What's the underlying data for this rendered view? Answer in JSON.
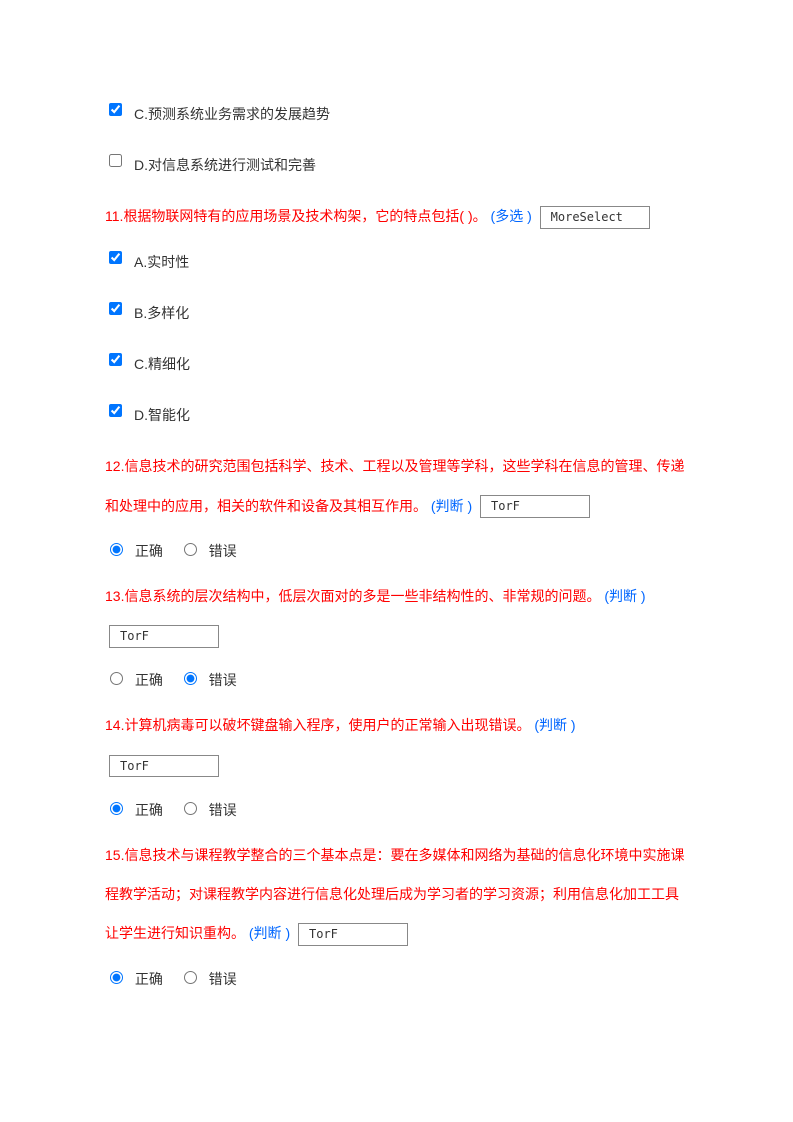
{
  "q10": {
    "options": [
      {
        "checked": true,
        "label": "C.预测系统业务需求的发展趋势"
      },
      {
        "checked": false,
        "label": "D.对信息系统进行测试和完善"
      }
    ]
  },
  "q11": {
    "number": "11.",
    "text": "根据物联网特有的应用场景及技术构架，它的特点包括( )。",
    "tag": "(多选 )",
    "type_box": "MoreSelect",
    "options": [
      {
        "checked": true,
        "label": "A.实时性"
      },
      {
        "checked": true,
        "label": "B.多样化"
      },
      {
        "checked": true,
        "label": "C.精细化"
      },
      {
        "checked": true,
        "label": "D.智能化"
      }
    ]
  },
  "q12": {
    "number": "12.",
    "text": "信息技术的研究范围包括科学、技术、工程以及管理等学科，这些学科在信息的管理、传递和处理中的应用，相关的软件和设备及其相互作用。",
    "tag": "(判断 )",
    "type_box": "TorF",
    "true_label": "正确",
    "false_label": "错误",
    "selected": "true"
  },
  "q13": {
    "number": "13.",
    "text": "信息系统的层次结构中，低层次面对的多是一些非结构性的、非常规的问题。",
    "tag": "(判断 )",
    "type_box": "TorF",
    "true_label": "正确",
    "false_label": "错误",
    "selected": "false"
  },
  "q14": {
    "number": "14.",
    "text": "计算机病毒可以破坏键盘输入程序，使用户的正常输入出现错误。",
    "tag": "(判断 )",
    "type_box": "TorF",
    "true_label": "正确",
    "false_label": "错误",
    "selected": "true"
  },
  "q15": {
    "number": "15.",
    "text": "信息技术与课程教学整合的三个基本点是：要在多媒体和网络为基础的信息化环境中实施课程教学活动；对课程教学内容进行信息化处理后成为学习者的学习资源；利用信息化加工工具让学生进行知识重构。",
    "tag": "(判断 )",
    "type_box": "TorF",
    "true_label": "正确",
    "false_label": "错误",
    "selected": "true"
  },
  "colors": {
    "question_text": "#ff0000",
    "tag_text": "#0066ff",
    "option_text": "#333333",
    "box_border": "#888888",
    "background": "#ffffff"
  }
}
